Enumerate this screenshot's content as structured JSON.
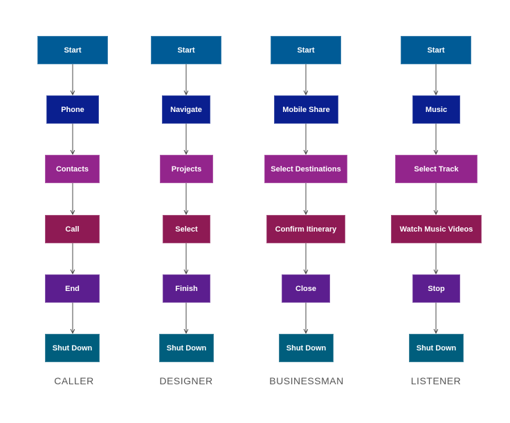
{
  "colors": {
    "start": "#005b96",
    "level2": "#0a1f8f",
    "level3": "#93258c",
    "level4": "#8e1a54",
    "level5": "#5c1e8f",
    "shutdown": "#005e7d",
    "arrow": "#444444"
  },
  "columns": [
    {
      "label": "CALLER",
      "steps": [
        "Start",
        "Phone",
        "Contacts",
        "Call",
        "End",
        "Shut Down"
      ]
    },
    {
      "label": "DESIGNER",
      "steps": [
        "Start",
        "Navigate",
        "Projects",
        "Select",
        "Finish",
        "Shut Down"
      ]
    },
    {
      "label": "BUSINESSMAN",
      "steps": [
        "Start",
        "Mobile Share",
        "Select Destinations",
        "Confirm Itinerary",
        "Close",
        "Shut Down"
      ]
    },
    {
      "label": "LISTENER",
      "steps": [
        "Start",
        "Music",
        "Select Track",
        "Watch Music Videos",
        "Stop",
        "Shut Down"
      ]
    }
  ]
}
